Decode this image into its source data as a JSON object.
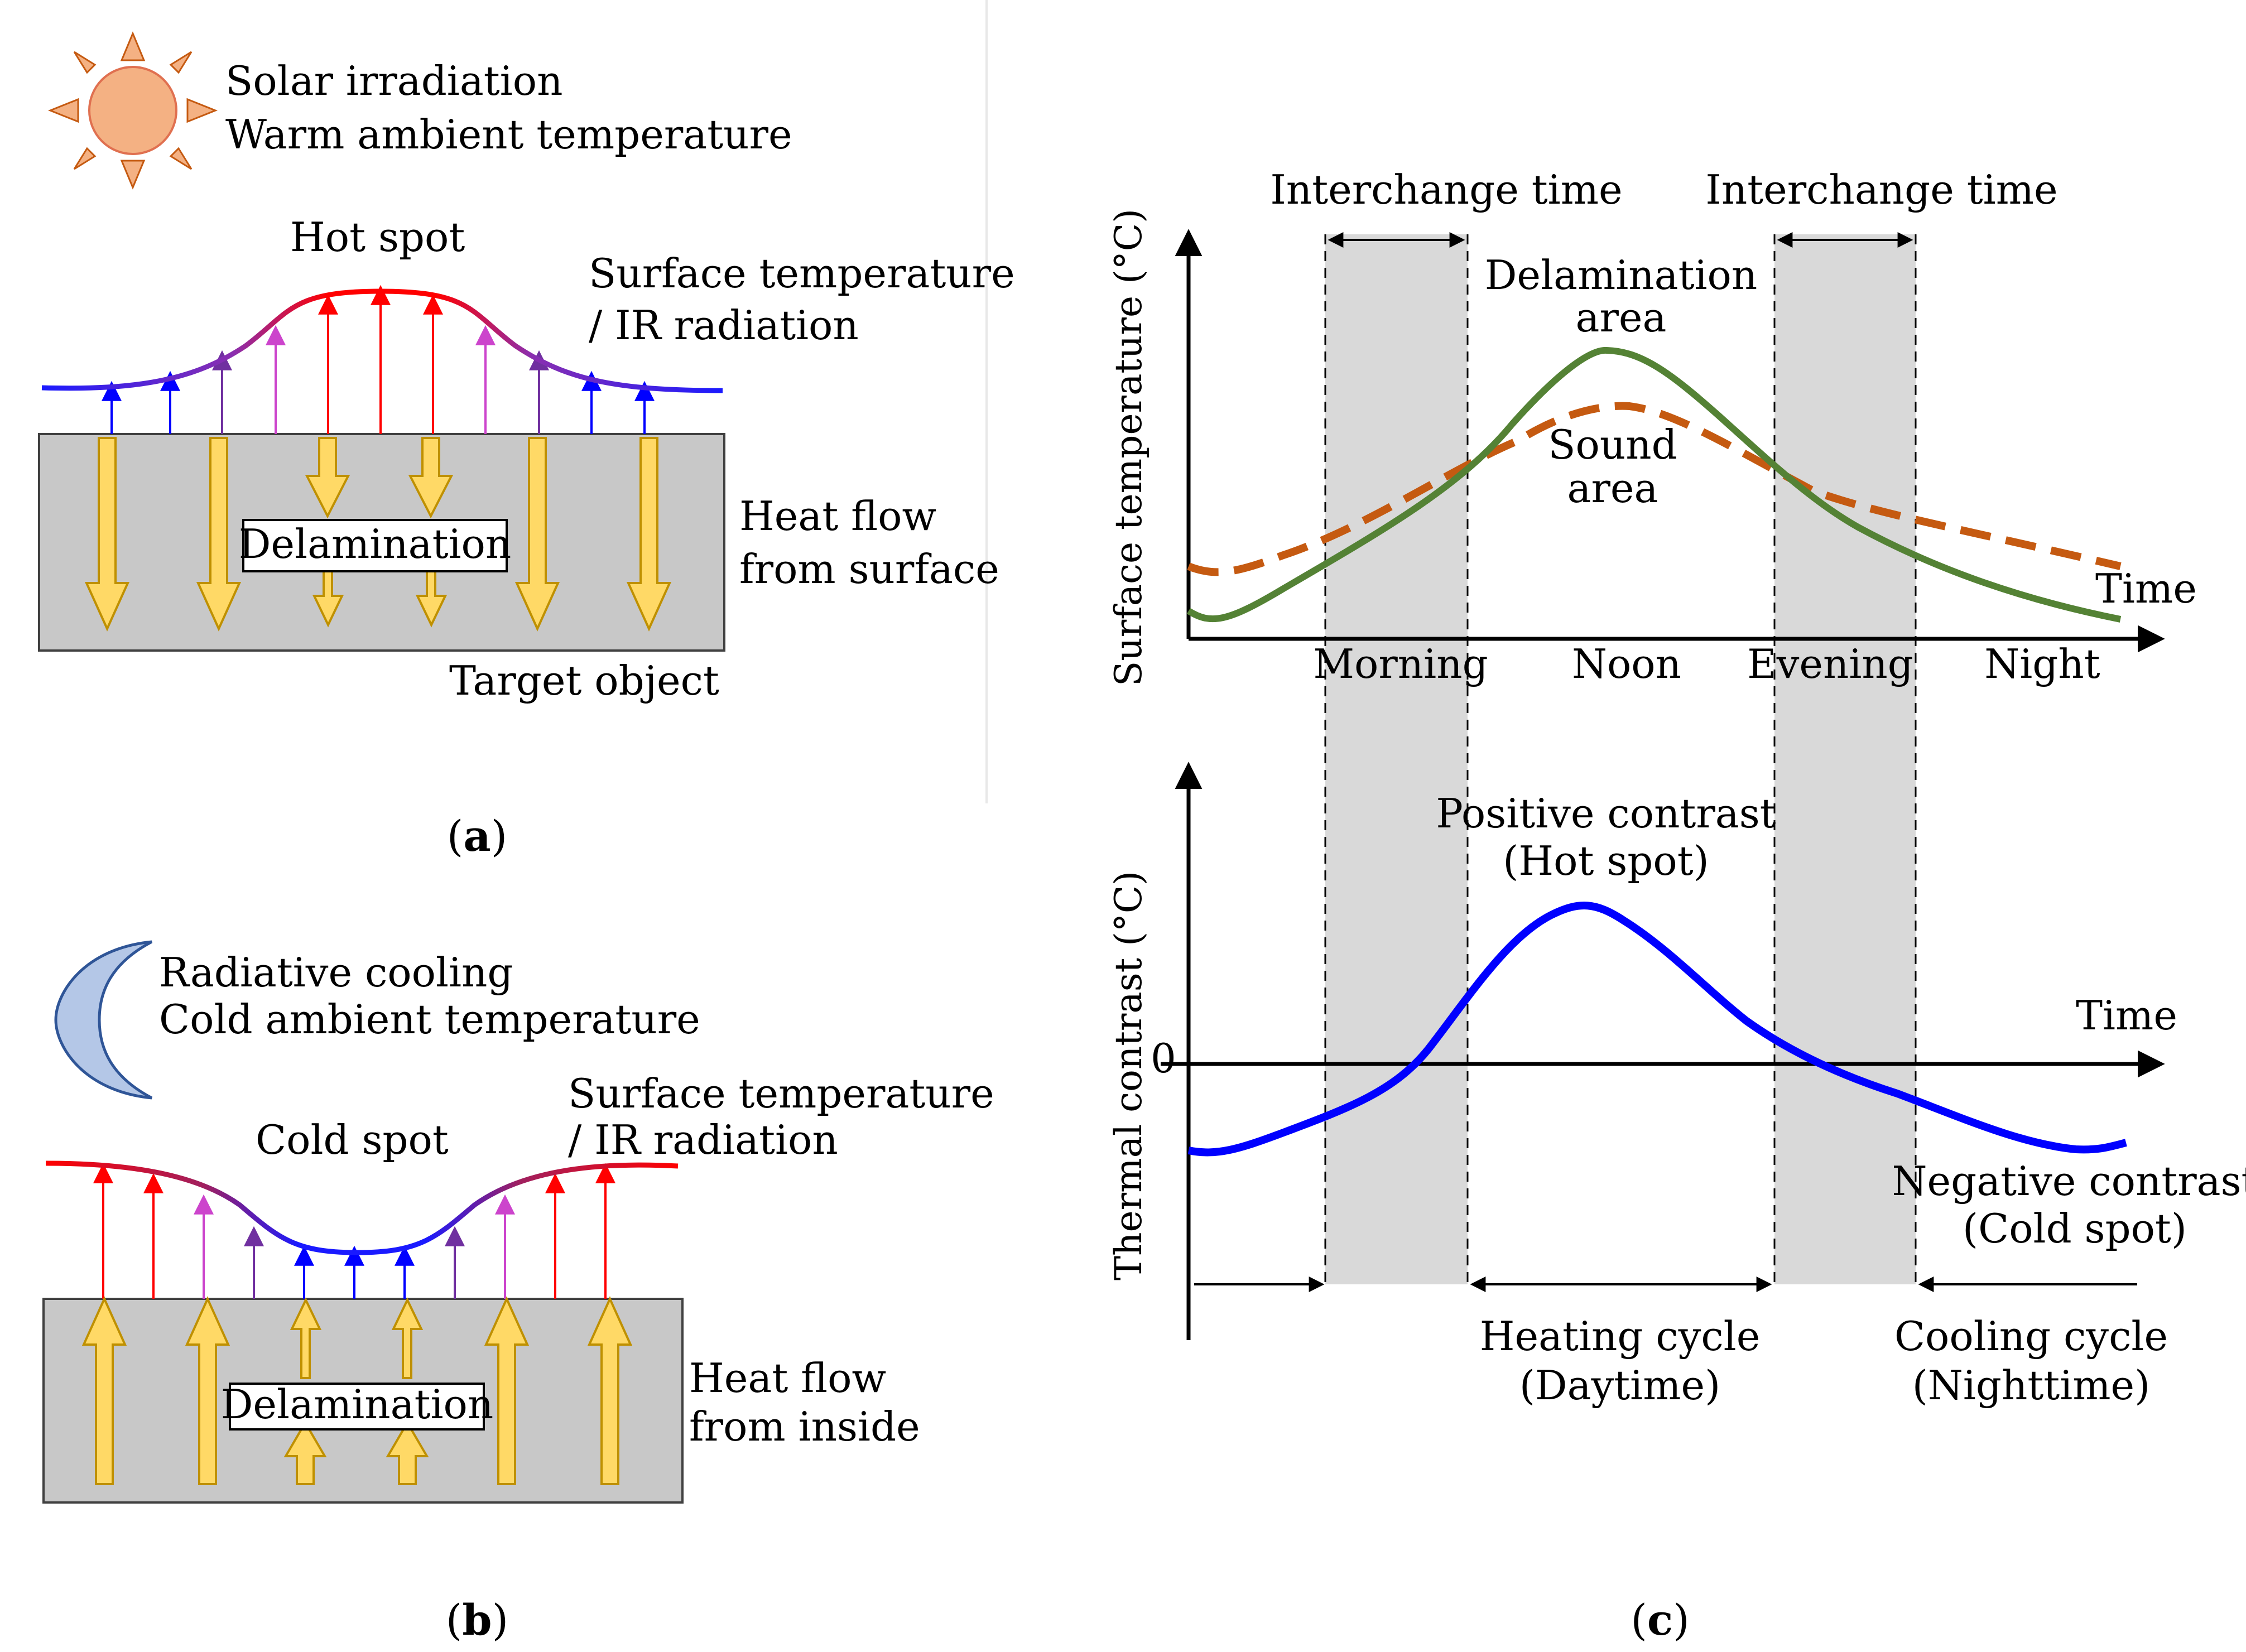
{
  "panel_a": {
    "sun_label_1": "Solar irradiation",
    "sun_label_2": "Warm ambient temperature",
    "hot_spot": "Hot spot",
    "surface_1": "Surface temperature",
    "surface_2": "/ IR radiation",
    "delamination": "Delamination",
    "heat_flow_1": "Heat flow",
    "heat_flow_2": "from surface",
    "target": "Target object",
    "caption_open": "(",
    "caption_letter": "a",
    "caption_close": ")",
    "icon": "sun-icon"
  },
  "panel_b": {
    "moon_label_1": "Radiative cooling",
    "moon_label_2": "Cold ambient temperature",
    "cold_spot": "Cold spot",
    "surface_1": "Surface   temperature",
    "surface_2": "/ IR radiation",
    "delamination": "Delamination",
    "heat_flow_1": "Heat flow",
    "heat_flow_2": "from inside",
    "caption_open": "(",
    "caption_letter": "b",
    "caption_close": ")",
    "icon": "moon-icon"
  },
  "panel_c": {
    "interchange_1": "Interchange  time",
    "interchange_2": "Interchange  time",
    "top_ylabel": "Surface temperature (°C)",
    "delam_1": "Delamination",
    "delam_2": "area",
    "sound_1": "Sound",
    "sound_2": "area",
    "time_top": "Time",
    "x_ticks": [
      "Morning",
      "Noon",
      "Evening",
      "Night"
    ],
    "bottom_ylabel": "Thermal contrast (°C)",
    "zero": "0",
    "time_bottom": "Time",
    "positive_1": "Positive contrast",
    "positive_2": "(Hot spot)",
    "negative_1": "Negative contrast",
    "negative_2": "(Cold spot)",
    "heating_1": "Heating cycle",
    "heating_2": "(Daytime)",
    "cooling_1": "Cooling cycle",
    "cooling_2": "(Nighttime)",
    "caption_open": "(",
    "caption_letter": "c",
    "caption_close": ")",
    "colors": {
      "delamination_curve": "#548235",
      "sound_curve": "#c55a11",
      "contrast_curve": "#0000ff",
      "interchange_band": "#d9d9d9"
    }
  },
  "colors": {
    "hot": "#ff0000",
    "mid": "#7030a0",
    "cold": "#0000ff",
    "heat_arrow_fill": "#ffd966",
    "heat_arrow_stroke": "#bf9000",
    "object_fill": "#c8c8c8",
    "sun_fill": "#f4b183",
    "moon_fill": "#b4c7e7"
  }
}
